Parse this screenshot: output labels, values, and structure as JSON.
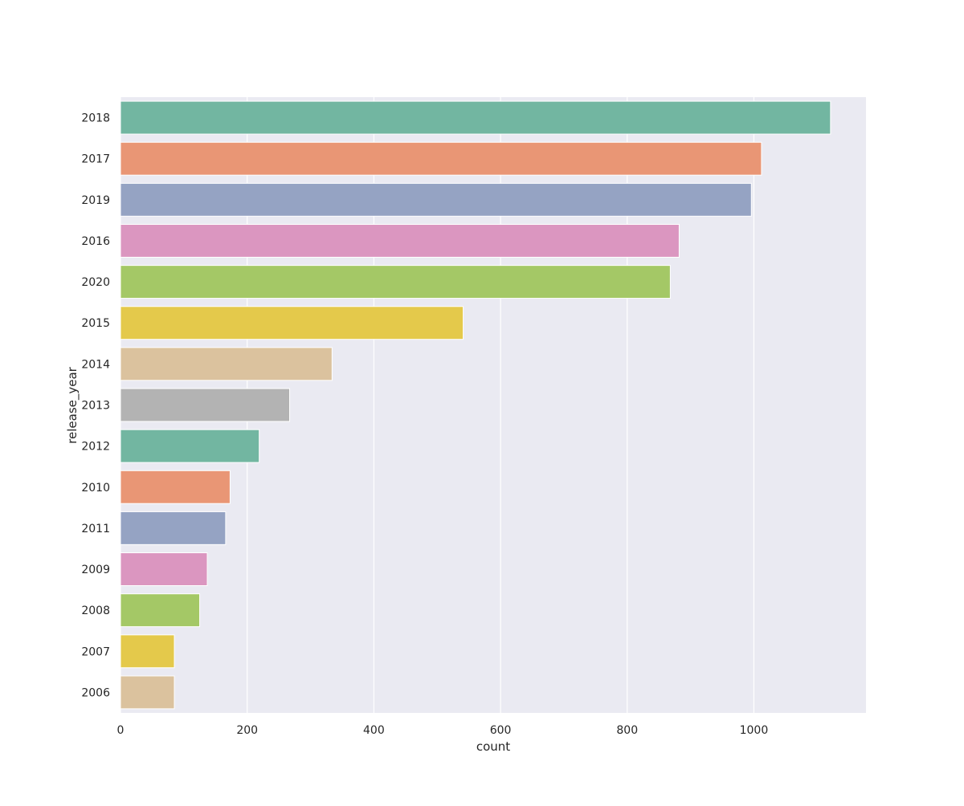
{
  "chart_data": {
    "type": "bar",
    "orientation": "horizontal",
    "title": "",
    "xlabel": "count",
    "ylabel": "release_year",
    "categories": [
      "2018",
      "2017",
      "2019",
      "2016",
      "2020",
      "2015",
      "2014",
      "2013",
      "2012",
      "2010",
      "2011",
      "2009",
      "2008",
      "2007",
      "2006"
    ],
    "values": [
      1121,
      1012,
      996,
      882,
      868,
      541,
      334,
      267,
      219,
      173,
      166,
      137,
      125,
      85,
      85
    ],
    "xlim": [
      0,
      1177
    ],
    "xticks": [
      0,
      200,
      400,
      600,
      800,
      1000
    ],
    "grid": true,
    "background": "#eaeaf2",
    "colors": [
      "#72b6a1",
      "#e99675",
      "#95a3c3",
      "#db96c0",
      "#a4c866",
      "#e4c94b",
      "#dbc29e",
      "#b3b3b3"
    ]
  }
}
